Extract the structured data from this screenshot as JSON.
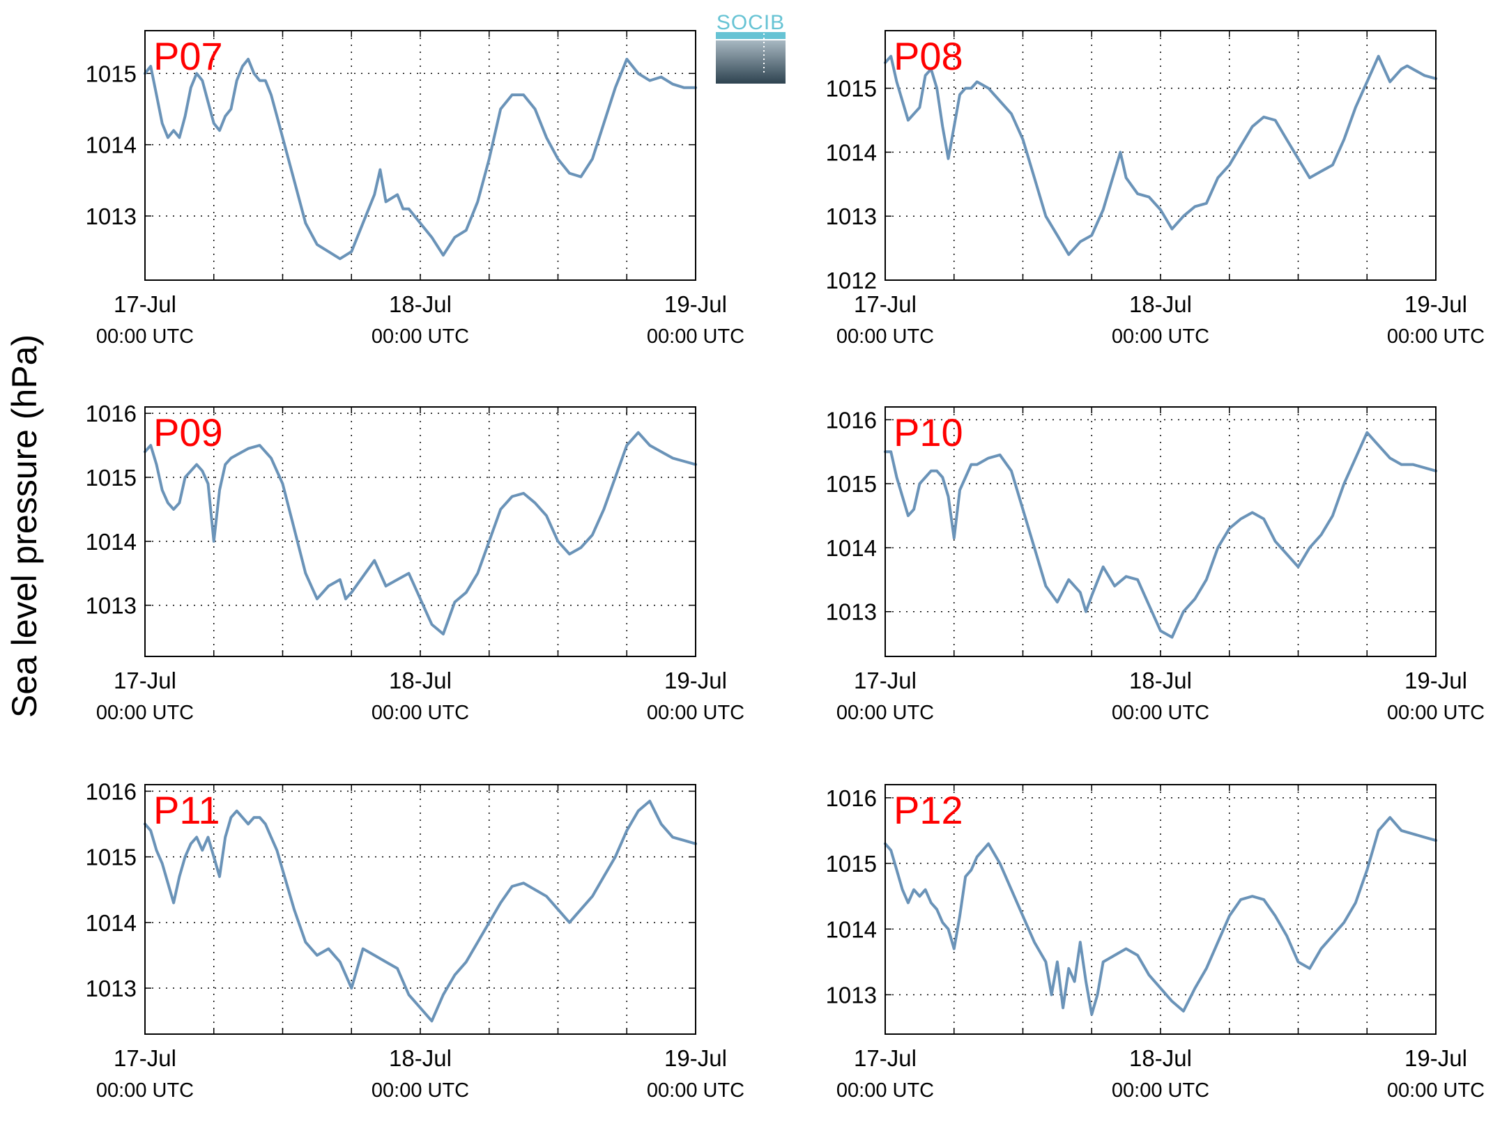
{
  "ylabel": "Sea level pressure (hPa)",
  "logo": {
    "text": "SOCIB"
  },
  "colors": {
    "line": "#6a93b8",
    "panel_label": "#ff0000",
    "logo_text": "#66c3d4",
    "logo_top": "#a8b8c2",
    "logo_bottom": "#2e4350"
  },
  "xaxis": {
    "ticks": [
      {
        "value": 0,
        "date": "17-Jul",
        "time": "00:00 UTC"
      },
      {
        "value": 24,
        "date": "18-Jul",
        "time": "00:00 UTC"
      },
      {
        "value": 48,
        "date": "19-Jul",
        "time": "00:00 UTC"
      }
    ],
    "gridlines": [
      6,
      12,
      18,
      24,
      30,
      36,
      42
    ]
  },
  "chart_data": [
    {
      "type": "line",
      "title": "P07",
      "xlim": [
        0,
        48
      ],
      "ylim": [
        1012.1,
        1015.6
      ],
      "yticks": [
        1013,
        1014,
        1015
      ],
      "grid": true,
      "x_units": "hours since 17-Jul 00:00 UTC",
      "x": [
        0,
        0.5,
        1,
        1.5,
        2,
        2.5,
        3,
        3.5,
        4,
        4.5,
        5,
        5.5,
        6,
        6.5,
        7,
        7.5,
        8,
        8.5,
        9,
        9.5,
        10,
        10.5,
        11,
        11.5,
        12,
        13,
        14,
        15,
        16,
        17,
        18,
        19,
        20,
        20.5,
        21,
        22,
        22.5,
        23,
        24,
        25,
        26,
        27,
        28,
        29,
        30,
        31,
        32,
        33,
        34,
        35,
        36,
        37,
        38,
        39,
        40,
        41,
        42,
        43,
        44,
        45,
        46,
        47,
        48
      ],
      "y": [
        1015.0,
        1015.1,
        1014.7,
        1014.3,
        1014.1,
        1014.2,
        1014.1,
        1014.4,
        1014.8,
        1015.0,
        1014.9,
        1014.6,
        1014.3,
        1014.2,
        1014.4,
        1014.5,
        1014.9,
        1015.1,
        1015.2,
        1015.0,
        1014.9,
        1014.9,
        1014.7,
        1014.4,
        1014.1,
        1013.5,
        1012.9,
        1012.6,
        1012.5,
        1012.4,
        1012.5,
        1012.9,
        1013.3,
        1013.65,
        1013.2,
        1013.3,
        1013.1,
        1013.1,
        1012.9,
        1012.7,
        1012.45,
        1012.7,
        1012.8,
        1013.2,
        1013.8,
        1014.5,
        1014.7,
        1014.7,
        1014.5,
        1014.1,
        1013.8,
        1013.6,
        1013.55,
        1013.8,
        1014.3,
        1014.8,
        1015.2,
        1015.0,
        1014.9,
        1014.95,
        1014.85,
        1014.8,
        1014.8
      ]
    },
    {
      "type": "line",
      "title": "P08",
      "xlim": [
        0,
        48
      ],
      "ylim": [
        1012,
        1015.9
      ],
      "yticks": [
        1012,
        1013,
        1014,
        1015
      ],
      "grid": true,
      "x_units": "hours since 17-Jul 00:00 UTC",
      "x": [
        0,
        0.5,
        1,
        1.5,
        2,
        3,
        3.5,
        4,
        4.5,
        5,
        5.5,
        6,
        6.5,
        7,
        7.5,
        8,
        9,
        10,
        11,
        12,
        13,
        14,
        15,
        16,
        17,
        18,
        19,
        20,
        20.5,
        21,
        22,
        23,
        24,
        25,
        26,
        27,
        28,
        29,
        30,
        31,
        32,
        33,
        34,
        35,
        36,
        37,
        38,
        39,
        40,
        41,
        42,
        43,
        44,
        45,
        45.5,
        46,
        47,
        48
      ],
      "y": [
        1015.4,
        1015.5,
        1015.1,
        1014.8,
        1014.5,
        1014.7,
        1015.2,
        1015.3,
        1015.0,
        1014.4,
        1013.9,
        1014.4,
        1014.9,
        1015.0,
        1015.0,
        1015.1,
        1015.0,
        1014.8,
        1014.6,
        1014.2,
        1013.6,
        1013.0,
        1012.7,
        1012.4,
        1012.6,
        1012.7,
        1013.1,
        1013.7,
        1014.0,
        1013.6,
        1013.35,
        1013.3,
        1013.1,
        1012.8,
        1013.0,
        1013.15,
        1013.2,
        1013.6,
        1013.8,
        1014.1,
        1014.4,
        1014.55,
        1014.5,
        1014.2,
        1013.9,
        1013.6,
        1013.7,
        1013.8,
        1014.2,
        1014.7,
        1015.1,
        1015.5,
        1015.1,
        1015.3,
        1015.35,
        1015.3,
        1015.2,
        1015.15
      ]
    },
    {
      "type": "line",
      "title": "P09",
      "xlim": [
        0,
        48
      ],
      "ylim": [
        1012.2,
        1016.1
      ],
      "yticks": [
        1013,
        1014,
        1015,
        1016
      ],
      "grid": true,
      "x_units": "hours since 17-Jul 00:00 UTC",
      "x": [
        0,
        0.5,
        1,
        1.5,
        2,
        2.5,
        3,
        3.5,
        4,
        4.5,
        5,
        5.5,
        6,
        6.5,
        7,
        7.5,
        8,
        9,
        10,
        11,
        12,
        13,
        14,
        15,
        16,
        17,
        17.5,
        18,
        19,
        20,
        21,
        22,
        23,
        24,
        25,
        26,
        27,
        28,
        29,
        30,
        31,
        32,
        33,
        34,
        35,
        36,
        37,
        38,
        39,
        40,
        41,
        42,
        43,
        44,
        45,
        46,
        47,
        48
      ],
      "y": [
        1015.4,
        1015.5,
        1015.2,
        1014.8,
        1014.6,
        1014.5,
        1014.6,
        1015.0,
        1015.1,
        1015.2,
        1015.1,
        1014.9,
        1014.0,
        1014.8,
        1015.2,
        1015.3,
        1015.35,
        1015.45,
        1015.5,
        1015.3,
        1014.9,
        1014.2,
        1013.5,
        1013.1,
        1013.3,
        1013.4,
        1013.1,
        1013.2,
        1013.45,
        1013.7,
        1013.3,
        1013.4,
        1013.5,
        1013.1,
        1012.7,
        1012.55,
        1013.05,
        1013.2,
        1013.5,
        1014.0,
        1014.5,
        1014.7,
        1014.75,
        1014.6,
        1014.4,
        1014.0,
        1013.8,
        1013.9,
        1014.1,
        1014.5,
        1015.0,
        1015.5,
        1015.7,
        1015.5,
        1015.4,
        1015.3,
        1015.25,
        1015.2
      ]
    },
    {
      "type": "line",
      "title": "P10",
      "xlim": [
        0,
        48
      ],
      "ylim": [
        1012.3,
        1016.2
      ],
      "yticks": [
        1013,
        1014,
        1015,
        1016
      ],
      "grid": true,
      "x_units": "hours since 17-Jul 00:00 UTC",
      "x": [
        0,
        0.5,
        1,
        1.5,
        2,
        2.5,
        3,
        3.5,
        4,
        4.5,
        5,
        5.5,
        6,
        6.5,
        7,
        7.5,
        8,
        9,
        10,
        11,
        12,
        13,
        14,
        15,
        16,
        17,
        17.5,
        18,
        19,
        20,
        21,
        22,
        23,
        24,
        25,
        26,
        27,
        28,
        29,
        30,
        31,
        32,
        33,
        34,
        35,
        36,
        37,
        38,
        39,
        40,
        41,
        42,
        43,
        44,
        45,
        46,
        47,
        48
      ],
      "y": [
        1015.5,
        1015.5,
        1015.1,
        1014.8,
        1014.5,
        1014.6,
        1015.0,
        1015.1,
        1015.2,
        1015.2,
        1015.1,
        1014.8,
        1014.15,
        1014.9,
        1015.1,
        1015.3,
        1015.3,
        1015.4,
        1015.45,
        1015.2,
        1014.6,
        1014.0,
        1013.4,
        1013.15,
        1013.5,
        1013.3,
        1013.0,
        1013.25,
        1013.7,
        1013.4,
        1013.55,
        1013.5,
        1013.1,
        1012.7,
        1012.6,
        1013.0,
        1013.2,
        1013.5,
        1014.0,
        1014.3,
        1014.45,
        1014.55,
        1014.45,
        1014.1,
        1013.9,
        1013.7,
        1014.0,
        1014.2,
        1014.5,
        1015.0,
        1015.4,
        1015.8,
        1015.6,
        1015.4,
        1015.3,
        1015.3,
        1015.25,
        1015.2
      ]
    },
    {
      "type": "line",
      "title": "P11",
      "xlim": [
        0,
        48
      ],
      "ylim": [
        1012.3,
        1016.1
      ],
      "yticks": [
        1013,
        1014,
        1015,
        1016
      ],
      "grid": true,
      "x_units": "hours since 17-Jul 00:00 UTC",
      "x": [
        0,
        0.5,
        1,
        1.5,
        2,
        2.5,
        3,
        3.5,
        4,
        4.5,
        5,
        5.5,
        6,
        6.5,
        7,
        7.5,
        8,
        8.5,
        9,
        9.5,
        10,
        10.5,
        11,
        11.5,
        12,
        13,
        14,
        15,
        16,
        17,
        18,
        19,
        20,
        21,
        22,
        23,
        24,
        25,
        26,
        27,
        28,
        29,
        30,
        31,
        32,
        33,
        34,
        35,
        36,
        37,
        38,
        39,
        40,
        41,
        42,
        43,
        44,
        45,
        46,
        47,
        48
      ],
      "y": [
        1015.5,
        1015.4,
        1015.1,
        1014.9,
        1014.6,
        1014.3,
        1014.7,
        1015.0,
        1015.2,
        1015.3,
        1015.1,
        1015.3,
        1015.0,
        1014.7,
        1015.3,
        1015.6,
        1015.7,
        1015.6,
        1015.5,
        1015.6,
        1015.6,
        1015.5,
        1015.3,
        1015.1,
        1014.8,
        1014.2,
        1013.7,
        1013.5,
        1013.6,
        1013.4,
        1013.0,
        1013.6,
        1013.5,
        1013.4,
        1013.3,
        1012.9,
        1012.7,
        1012.5,
        1012.9,
        1013.2,
        1013.4,
        1013.7,
        1014.0,
        1014.3,
        1014.55,
        1014.6,
        1014.5,
        1014.4,
        1014.2,
        1014.0,
        1014.2,
        1014.4,
        1014.7,
        1015.0,
        1015.4,
        1015.7,
        1015.85,
        1015.5,
        1015.3,
        1015.25,
        1015.2
      ]
    },
    {
      "type": "line",
      "title": "P12",
      "xlim": [
        0,
        48
      ],
      "ylim": [
        1012.4,
        1016.2
      ],
      "yticks": [
        1013,
        1014,
        1015,
        1016
      ],
      "grid": true,
      "x_units": "hours since 17-Jul 00:00 UTC",
      "x": [
        0,
        0.5,
        1,
        1.5,
        2,
        2.5,
        3,
        3.5,
        4,
        4.5,
        5,
        5.5,
        6,
        6.5,
        7,
        7.5,
        8,
        9,
        10,
        11,
        12,
        13,
        14,
        14.5,
        15,
        15.5,
        16,
        16.5,
        17,
        17.5,
        18,
        18.5,
        19,
        20,
        21,
        22,
        23,
        24,
        25,
        26,
        27,
        28,
        29,
        30,
        31,
        32,
        33,
        34,
        35,
        36,
        37,
        38,
        39,
        40,
        41,
        42,
        43,
        44,
        45,
        46,
        47,
        48
      ],
      "y": [
        1015.3,
        1015.2,
        1014.9,
        1014.6,
        1014.4,
        1014.6,
        1014.5,
        1014.6,
        1014.4,
        1014.3,
        1014.1,
        1014.0,
        1013.7,
        1014.2,
        1014.8,
        1014.9,
        1015.1,
        1015.3,
        1015.0,
        1014.6,
        1014.2,
        1013.8,
        1013.5,
        1013.0,
        1013.5,
        1012.8,
        1013.4,
        1013.2,
        1013.8,
        1013.2,
        1012.7,
        1013.0,
        1013.5,
        1013.6,
        1013.7,
        1013.6,
        1013.3,
        1013.1,
        1012.9,
        1012.75,
        1013.1,
        1013.4,
        1013.8,
        1014.2,
        1014.45,
        1014.5,
        1014.45,
        1014.2,
        1013.9,
        1013.5,
        1013.4,
        1013.7,
        1013.9,
        1014.1,
        1014.4,
        1014.9,
        1015.5,
        1015.7,
        1015.5,
        1015.45,
        1015.4,
        1015.35
      ]
    }
  ]
}
